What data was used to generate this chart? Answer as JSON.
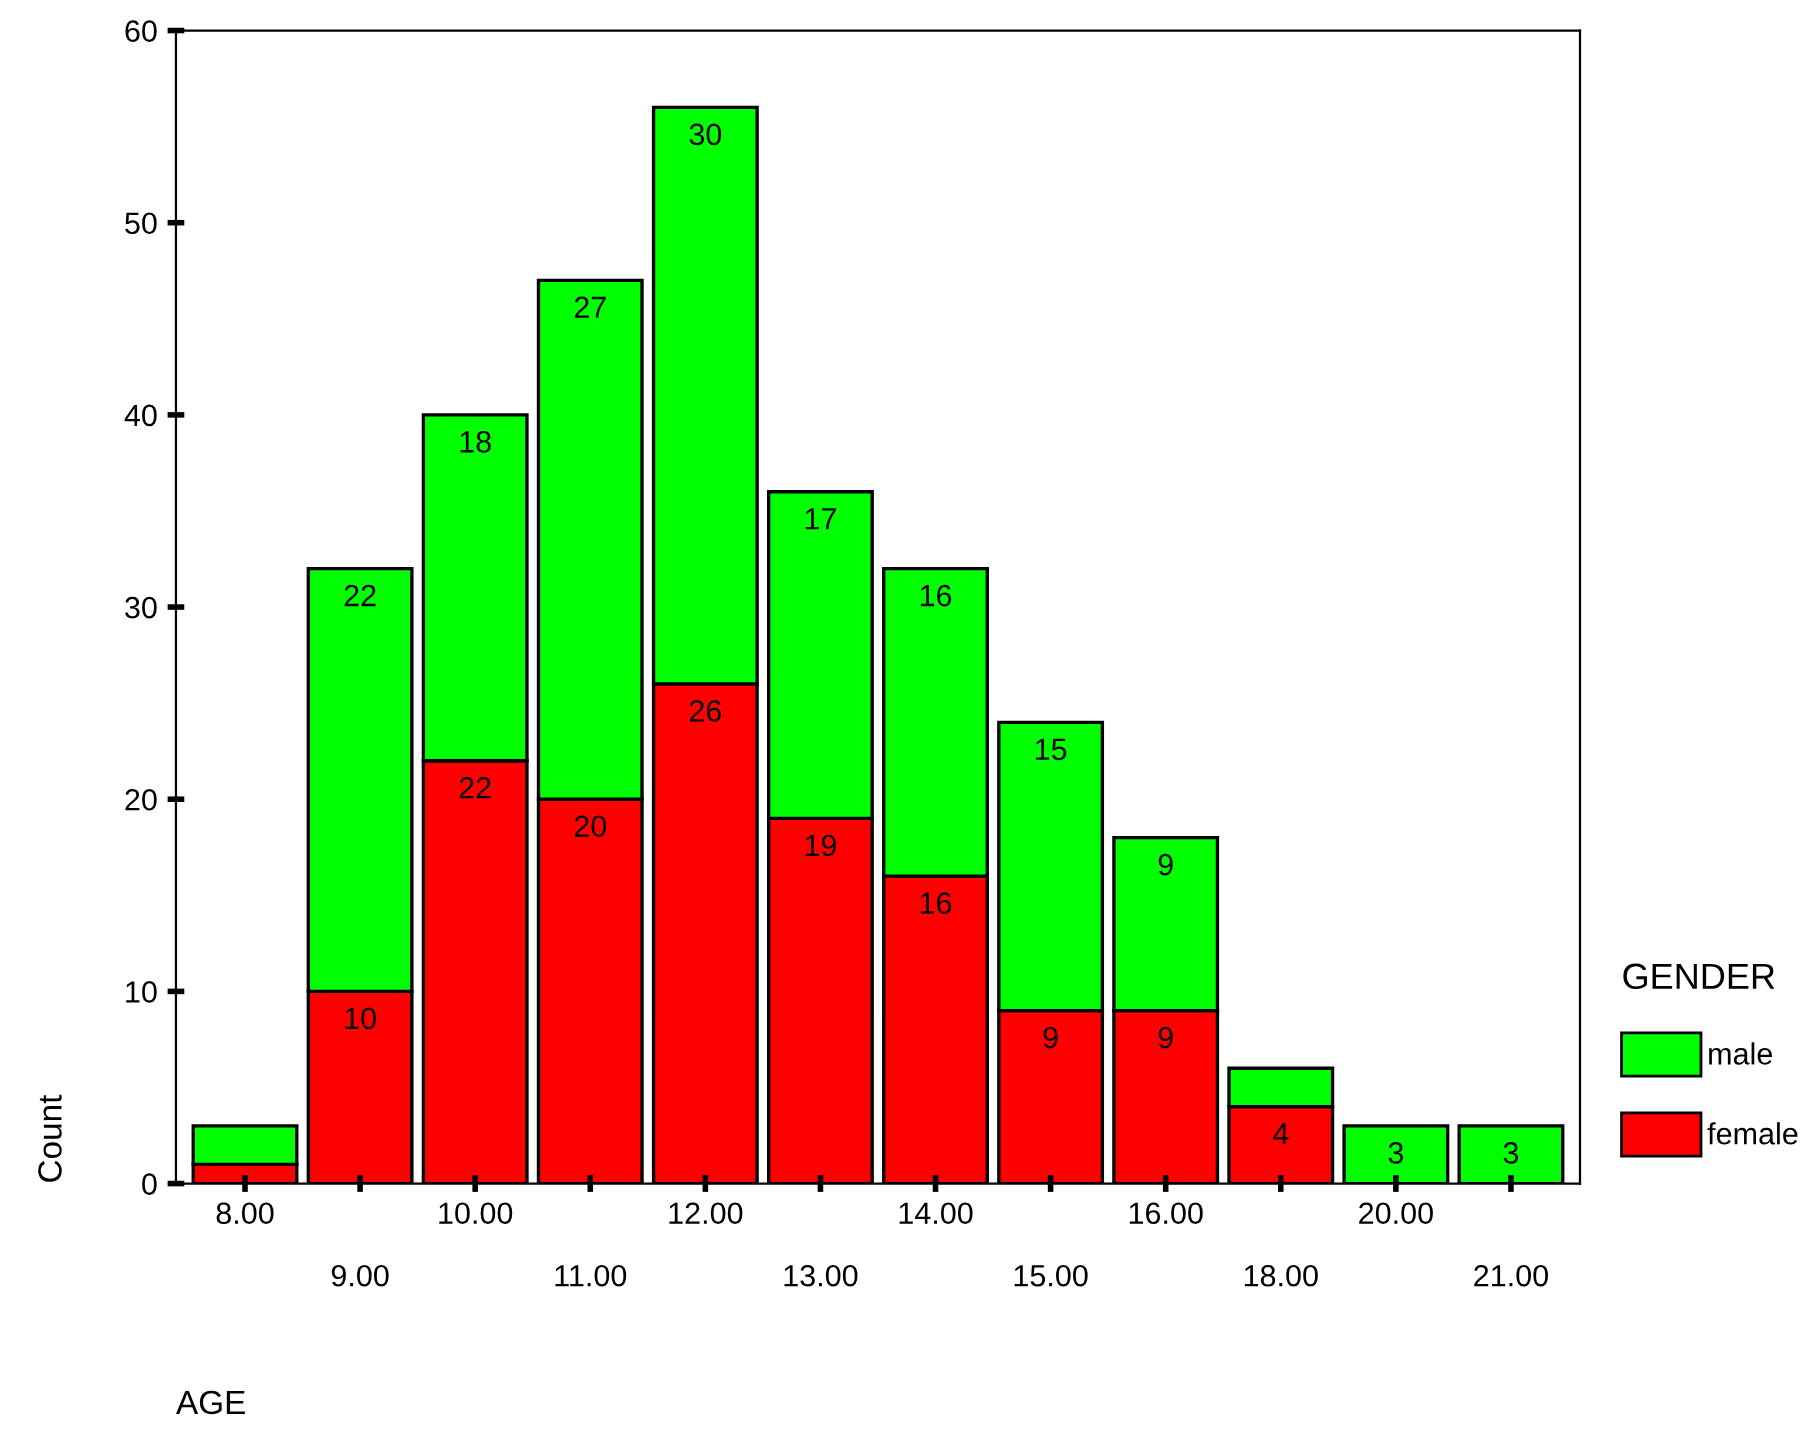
{
  "chart_data": {
    "type": "bar",
    "stacked": true,
    "xlabel": "AGE",
    "ylabel": "Count",
    "legend_title": "GENDER",
    "legend": "right",
    "categories": [
      "8.00",
      "9.00",
      "10.00",
      "11.00",
      "12.00",
      "13.00",
      "14.00",
      "15.00",
      "16.00",
      "18.00",
      "20.00",
      "21.00"
    ],
    "series": [
      {
        "name": "female",
        "color": "#ff0000",
        "values": [
          1,
          10,
          22,
          20,
          26,
          19,
          16,
          9,
          9,
          4,
          0,
          0
        ],
        "value_labels": [
          null,
          "10",
          "22",
          "20",
          "26",
          "19",
          "16",
          "9",
          "9",
          "4",
          null,
          null
        ]
      },
      {
        "name": "male",
        "color": "#00ff00",
        "values": [
          2,
          22,
          18,
          27,
          30,
          17,
          16,
          15,
          9,
          2,
          3,
          3
        ],
        "value_labels": [
          null,
          "22",
          "18",
          "27",
          "30",
          "17",
          "16",
          "15",
          "9",
          null,
          "3",
          "3"
        ]
      }
    ],
    "ylim": [
      0,
      60
    ],
    "yticks": [
      0,
      10,
      20,
      30,
      40,
      50,
      60
    ],
    "grid": false
  }
}
